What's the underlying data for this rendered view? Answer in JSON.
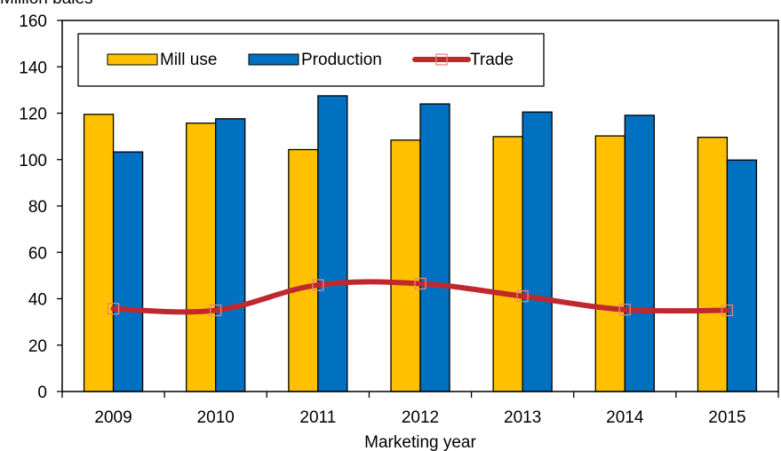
{
  "chart_data": {
    "type": "bar",
    "ylabel": "Million bales",
    "xlabel": "Marketing year",
    "ylim": [
      0,
      160
    ],
    "yticks": [
      0,
      20,
      40,
      60,
      80,
      100,
      120,
      140,
      160
    ],
    "categories": [
      "2009",
      "2010",
      "2011",
      "2012",
      "2013",
      "2014",
      "2015"
    ],
    "series": [
      {
        "name": "Mill use",
        "kind": "bar",
        "color": "#FFC000",
        "values": [
          119.5,
          115.7,
          104.3,
          108.4,
          109.9,
          110.2,
          109.6
        ]
      },
      {
        "name": "Production",
        "kind": "bar",
        "color": "#0070C0",
        "values": [
          103.3,
          117.6,
          127.5,
          124.0,
          120.5,
          119.1,
          99.8
        ]
      },
      {
        "name": "Trade",
        "kind": "line",
        "color": "#C0282D",
        "values": [
          35.7,
          35.0,
          45.9,
          46.5,
          41.1,
          35.3,
          35.0
        ]
      }
    ],
    "legend_position": "top-left inside plot",
    "grid": false
  }
}
